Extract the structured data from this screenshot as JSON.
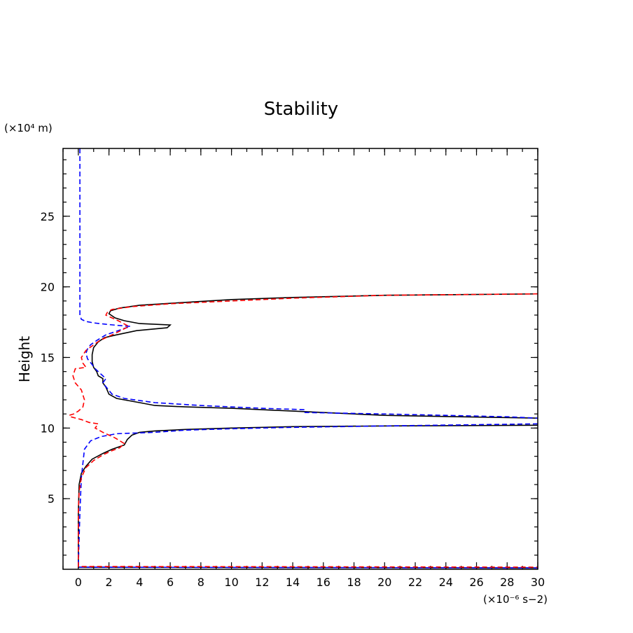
{
  "chart_data": {
    "type": "line",
    "title": "Stability",
    "xlabel": "",
    "ylabel": "Height",
    "x_unit_label": "(×10⁻⁶ s−2)",
    "y_unit_label": "(×10⁴ m)",
    "xlim": [
      -1,
      30
    ],
    "ylim": [
      0,
      29.8
    ],
    "x_ticks": [
      0,
      2,
      4,
      6,
      8,
      10,
      12,
      14,
      16,
      18,
      20,
      22,
      24,
      26,
      28,
      30
    ],
    "x_tick_labels": [
      "0",
      "2",
      "4",
      "6",
      "8",
      "10",
      "12",
      "14",
      "16",
      "18",
      "20",
      "22",
      "24",
      "26",
      "28",
      "30"
    ],
    "x_minor_step": 1,
    "y_ticks": [
      5,
      10,
      15,
      20,
      25
    ],
    "y_tick_labels": [
      "5",
      "10",
      "15",
      "20",
      "25"
    ],
    "y_minor_step": 1,
    "series": [
      {
        "name": "black-solid",
        "color": "#000000",
        "dash": "solid",
        "x": [
          30,
          20,
          14,
          10,
          7,
          5,
          4,
          3.5,
          3.2,
          3.0,
          2.2,
          1.6,
          0.9,
          0.5,
          0.2,
          0.05,
          0,
          0,
          0,
          15,
          30,
          null,
          30,
          20,
          14,
          10,
          7,
          5,
          4,
          2.5,
          2.0,
          1.8,
          1.6,
          1.6,
          1.3,
          1.2,
          1.0,
          0.9,
          0.9,
          1.0,
          1.3,
          1.7,
          2.5,
          3.8,
          5.8,
          6.0,
          4.0,
          3.0,
          2.4,
          2.0,
          2.1,
          2.7,
          4.0,
          7,
          10,
          14,
          20,
          30
        ],
        "y": [
          10.2,
          10.15,
          10.1,
          10.0,
          9.9,
          9.8,
          9.7,
          9.5,
          9.2,
          8.8,
          8.5,
          8.2,
          7.8,
          7.3,
          6.8,
          6.0,
          4.0,
          0.3,
          0.15,
          0.12,
          0.1,
          null,
          10.7,
          10.9,
          11.2,
          11.4,
          11.5,
          11.6,
          11.8,
          12.1,
          12.4,
          12.9,
          13.2,
          13.5,
          13.7,
          14.0,
          14.3,
          14.7,
          15.2,
          15.7,
          16.1,
          16.4,
          16.6,
          16.9,
          17.1,
          17.3,
          17.4,
          17.6,
          17.8,
          18.1,
          18.3,
          18.5,
          18.7,
          18.9,
          19.1,
          19.25,
          19.4,
          19.5
        ]
      },
      {
        "name": "blue-dashed",
        "color": "#0000ff",
        "dash": "dashed",
        "x": [
          0.1,
          0.1,
          0.1,
          0.2,
          0.5,
          1.0,
          1.8,
          2.8,
          3.4,
          2.6,
          1.8,
          1.2,
          0.8,
          0.6,
          0.5,
          0.6,
          0.9,
          1.1,
          1.3,
          1.8,
          1.6,
          1.9,
          2.2,
          3.0,
          5.0,
          8,
          12,
          14.8,
          14.8,
          20,
          24,
          28,
          30,
          null,
          30,
          20,
          14,
          10,
          7,
          5,
          2.5,
          1.5,
          0.8,
          0.4,
          0.3,
          0.2,
          0.1,
          0,
          0,
          0,
          15,
          30
        ],
        "y": [
          29.8,
          20.0,
          18.0,
          17.7,
          17.55,
          17.45,
          17.35,
          17.25,
          17.2,
          16.9,
          16.6,
          16.2,
          15.9,
          15.6,
          15.3,
          14.9,
          14.5,
          14.2,
          14.0,
          13.5,
          13.2,
          12.8,
          12.4,
          12.1,
          11.8,
          11.6,
          11.4,
          11.3,
          11.1,
          11.0,
          10.9,
          10.8,
          10.7,
          null,
          10.3,
          10.15,
          10.05,
          9.95,
          9.85,
          9.7,
          9.6,
          9.4,
          9.1,
          8.5,
          7.5,
          6.5,
          4.0,
          0.3,
          0.18,
          0.15,
          0.12,
          0.1
        ]
      },
      {
        "name": "red-dashed",
        "color": "#ff0000",
        "dash": "dashed",
        "x": [
          30,
          20,
          14,
          10,
          6,
          3.5,
          2.2,
          1.9,
          1.8,
          2.6,
          3.3,
          2.4,
          1.4,
          0.5,
          0.2,
          0.3,
          0.5,
          -0.2,
          -0.35,
          -0.2,
          0.2,
          0.4,
          0.3,
          0.0,
          -0.3,
          -0.6,
          -0.5,
          0.2,
          0.7,
          1.3,
          1.1,
          1.6,
          2.4,
          3.0,
          2.7,
          2.2,
          1.6,
          1.0,
          0.5,
          0.2,
          0.05,
          0,
          0,
          0,
          15,
          30
        ],
        "y": [
          19.5,
          19.4,
          19.2,
          19.0,
          18.8,
          18.6,
          18.4,
          18.2,
          18.0,
          17.6,
          17.2,
          16.7,
          16.2,
          15.5,
          15.0,
          14.6,
          14.3,
          14.2,
          13.7,
          13.2,
          12.7,
          12.0,
          11.5,
          11.2,
          11.0,
          10.9,
          10.8,
          10.6,
          10.4,
          10.3,
          10.0,
          9.7,
          9.3,
          8.9,
          8.6,
          8.4,
          8.1,
          7.7,
          7.2,
          6.5,
          5.5,
          4.0,
          0.3,
          0.2,
          0.18,
          0.15
        ]
      }
    ]
  }
}
